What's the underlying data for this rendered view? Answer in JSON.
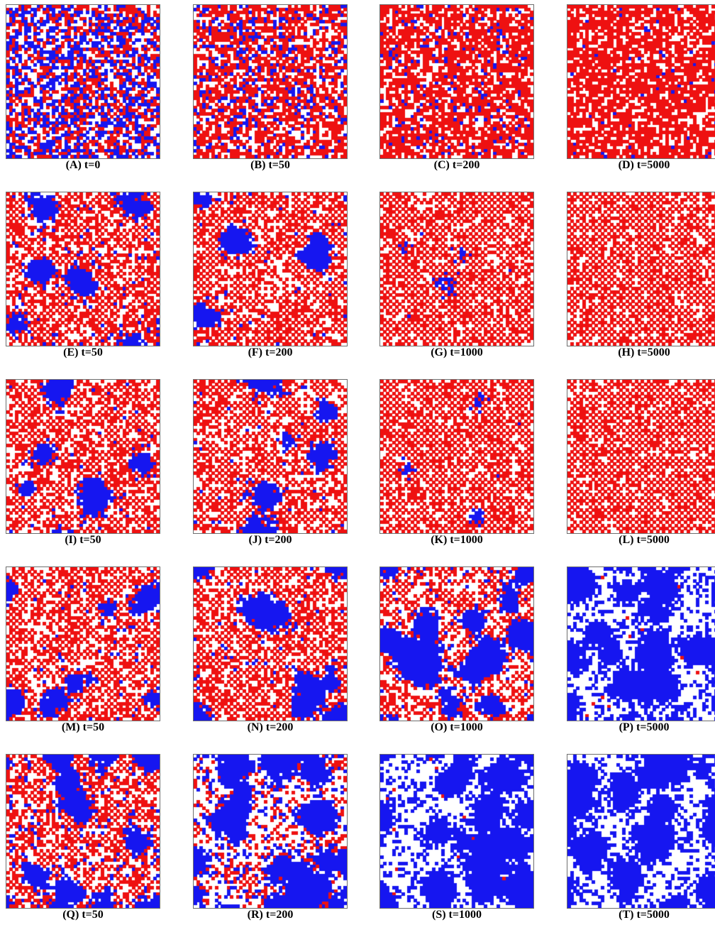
{
  "figure": {
    "colors": {
      "red": "#ee1111",
      "blue": "#1616f0",
      "empty": "#ffffff",
      "frame": "#6e6e6e"
    },
    "lattice_size": 50,
    "panels": [
      {
        "id": "A",
        "caption": "(A) t=0",
        "red": 0.33,
        "blue": 0.33,
        "checker": 0.0,
        "blue_cluster": 0.0
      },
      {
        "id": "B",
        "caption": "(B) t=50",
        "red": 0.55,
        "blue": 0.13,
        "checker": 0.0,
        "blue_cluster": 0.0
      },
      {
        "id": "C",
        "caption": "(C) t=200",
        "red": 0.62,
        "blue": 0.07,
        "checker": 0.0,
        "blue_cluster": 0.0
      },
      {
        "id": "D",
        "caption": "(D) t=5000",
        "red": 0.68,
        "blue": 0.02,
        "checker": 0.0,
        "blue_cluster": 0.0
      },
      {
        "id": "E",
        "caption": "(E) t=50",
        "red": 0.5,
        "blue": 0.22,
        "checker": 0.55,
        "blue_cluster": 0.6
      },
      {
        "id": "F",
        "caption": "(F) t=200",
        "red": 0.5,
        "blue": 0.15,
        "checker": 0.65,
        "blue_cluster": 0.7
      },
      {
        "id": "G",
        "caption": "(G) t=1000",
        "red": 0.52,
        "blue": 0.02,
        "checker": 0.75,
        "blue_cluster": 0.8
      },
      {
        "id": "H",
        "caption": "(H) t=5000",
        "red": 0.52,
        "blue": 0.0,
        "checker": 0.8,
        "blue_cluster": 0.0
      },
      {
        "id": "I",
        "caption": "(I) t=50",
        "red": 0.48,
        "blue": 0.18,
        "checker": 0.6,
        "blue_cluster": 0.65
      },
      {
        "id": "J",
        "caption": "(J) t=200",
        "red": 0.46,
        "blue": 0.16,
        "checker": 0.65,
        "blue_cluster": 0.75
      },
      {
        "id": "K",
        "caption": "(K) t=1000",
        "red": 0.52,
        "blue": 0.02,
        "checker": 0.75,
        "blue_cluster": 0.8
      },
      {
        "id": "L",
        "caption": "(L) t=5000",
        "red": 0.52,
        "blue": 0.0,
        "checker": 0.8,
        "blue_cluster": 0.0
      },
      {
        "id": "M",
        "caption": "(M) t=50",
        "red": 0.46,
        "blue": 0.18,
        "checker": 0.6,
        "blue_cluster": 0.65
      },
      {
        "id": "N",
        "caption": "(N) t=200",
        "red": 0.42,
        "blue": 0.22,
        "checker": 0.6,
        "blue_cluster": 0.75
      },
      {
        "id": "O",
        "caption": "(O) t=1000",
        "red": 0.28,
        "blue": 0.42,
        "checker": 0.55,
        "blue_cluster": 0.8
      },
      {
        "id": "P",
        "caption": "(P) t=5000",
        "red": 0.01,
        "blue": 0.6,
        "checker": 0.0,
        "blue_cluster": 0.6
      },
      {
        "id": "Q",
        "caption": "(Q) t=50",
        "red": 0.36,
        "blue": 0.34,
        "checker": 0.45,
        "blue_cluster": 0.6
      },
      {
        "id": "R",
        "caption": "(R) t=200",
        "red": 0.12,
        "blue": 0.55,
        "checker": 0.3,
        "blue_cluster": 0.65
      },
      {
        "id": "S",
        "caption": "(S) t=1000",
        "red": 0.01,
        "blue": 0.62,
        "checker": 0.0,
        "blue_cluster": 0.6
      },
      {
        "id": "T",
        "caption": "(T) t=5000",
        "red": 0.0,
        "blue": 0.63,
        "checker": 0.0,
        "blue_cluster": 0.6
      }
    ]
  }
}
